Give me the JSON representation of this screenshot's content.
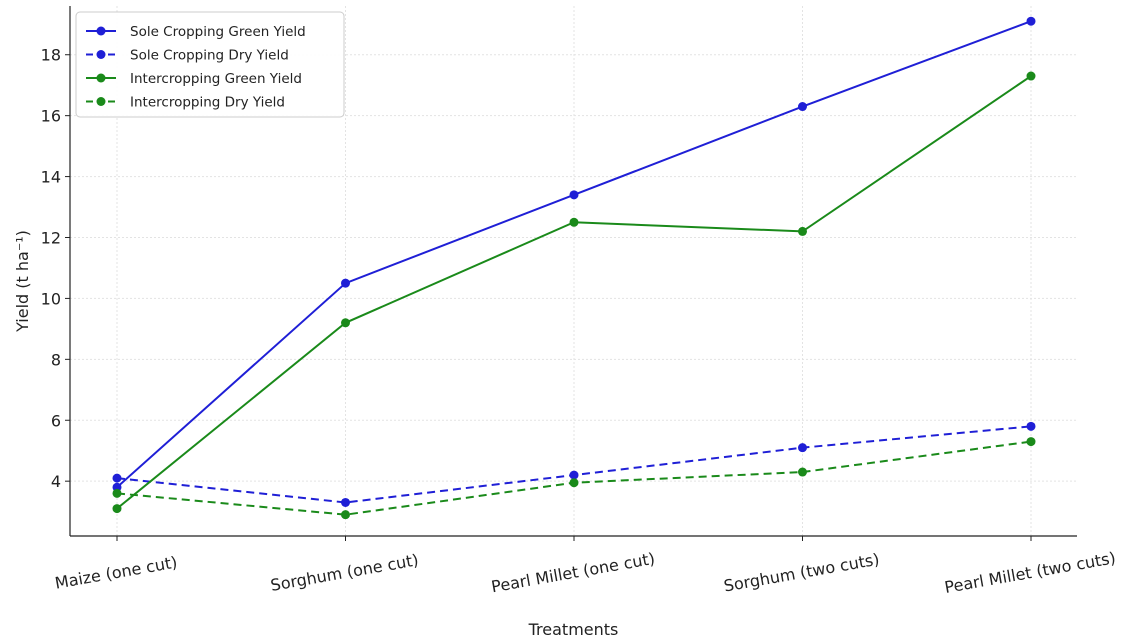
{
  "chart_data": {
    "type": "line",
    "categories": [
      "Maize (one cut)",
      "Sorghum (one cut)",
      "Pearl Millet (one cut)",
      "Sorghum (two cuts)",
      "Pearl Millet (two cuts)"
    ],
    "series": [
      {
        "name": "Sole Cropping Green Yield",
        "values": [
          3.8,
          10.5,
          13.4,
          16.3,
          19.1
        ],
        "color": "#1f1fd6",
        "dash": "solid"
      },
      {
        "name": "Sole Cropping Dry Yield",
        "values": [
          4.1,
          3.3,
          4.2,
          5.1,
          5.8
        ],
        "color": "#1f1fd6",
        "dash": "dashed"
      },
      {
        "name": "Intercropping Green Yield",
        "values": [
          3.1,
          9.2,
          12.5,
          12.2,
          17.3
        ],
        "color": "#1a8a1a",
        "dash": "solid"
      },
      {
        "name": "Intercropping Dry Yield",
        "values": [
          3.6,
          2.9,
          3.95,
          4.3,
          5.3
        ],
        "color": "#1a8a1a",
        "dash": "dashed"
      }
    ],
    "xlabel": "Treatments",
    "ylabel": "Yield (t ha⁻¹)",
    "ylim": [
      2.2,
      19.6
    ],
    "yticks": [
      4,
      6,
      8,
      10,
      12,
      14,
      16,
      18
    ],
    "grid": true,
    "legend_position": "top-left"
  }
}
